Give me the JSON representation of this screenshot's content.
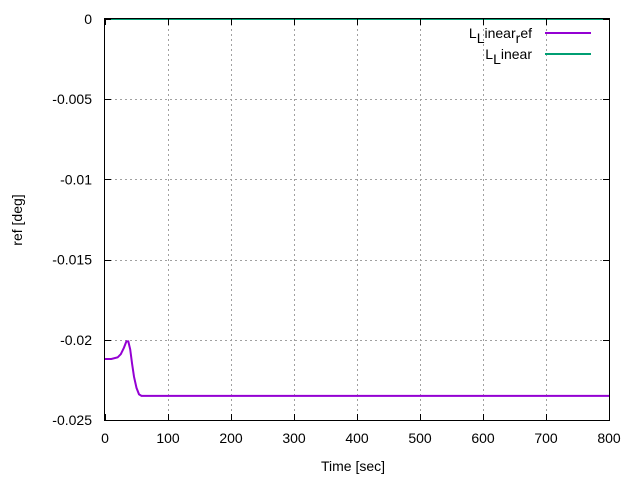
{
  "chart_data": {
    "type": "line",
    "title": "",
    "xlabel": "Time [sec]",
    "ylabel": "ref [deg]",
    "xlim": [
      0,
      800
    ],
    "ylim": [
      -0.025,
      0
    ],
    "x_ticks": [
      0,
      100,
      200,
      300,
      400,
      500,
      600,
      700,
      800
    ],
    "y_ticks": [
      0,
      -0.005,
      -0.01,
      -0.015,
      -0.02,
      -0.025
    ],
    "x_tick_labels": [
      "0",
      "100",
      "200",
      "300",
      "400",
      "500",
      "600",
      "700",
      "800"
    ],
    "y_tick_labels": [
      "0",
      "-0.005",
      "-0.01",
      "-0.015",
      "-0.02",
      "-0.025"
    ],
    "grid": true,
    "legend_position": "top-right",
    "series": [
      {
        "name": "L_Linear_ref",
        "color": "#9400d3",
        "x": [
          0,
          10,
          20,
          25,
          30,
          34,
          37,
          40,
          43,
          46,
          50,
          54,
          58,
          60,
          100,
          200,
          300,
          400,
          500,
          600,
          700,
          800
        ],
        "y": [
          -0.0212,
          -0.0212,
          -0.0211,
          -0.0209,
          -0.0205,
          -0.0201,
          -0.0201,
          -0.0206,
          -0.0215,
          -0.0223,
          -0.023,
          -0.0234,
          -0.0235,
          -0.0235,
          -0.0235,
          -0.0235,
          -0.0235,
          -0.0235,
          -0.0235,
          -0.0235,
          -0.0235,
          -0.0235
        ]
      },
      {
        "name": "L_Linear",
        "color": "#009e73",
        "x": [
          0,
          800
        ],
        "y": [
          0,
          0
        ]
      }
    ],
    "legend_entries": [
      {
        "base": "L",
        "sub1": "L",
        "mid": "inear",
        "sub2": "r",
        "tail": "ef",
        "color": "#9400d3"
      },
      {
        "base": "L",
        "sub1": "L",
        "mid": "inear",
        "sub2": "",
        "tail": "",
        "color": "#009e73"
      }
    ]
  }
}
